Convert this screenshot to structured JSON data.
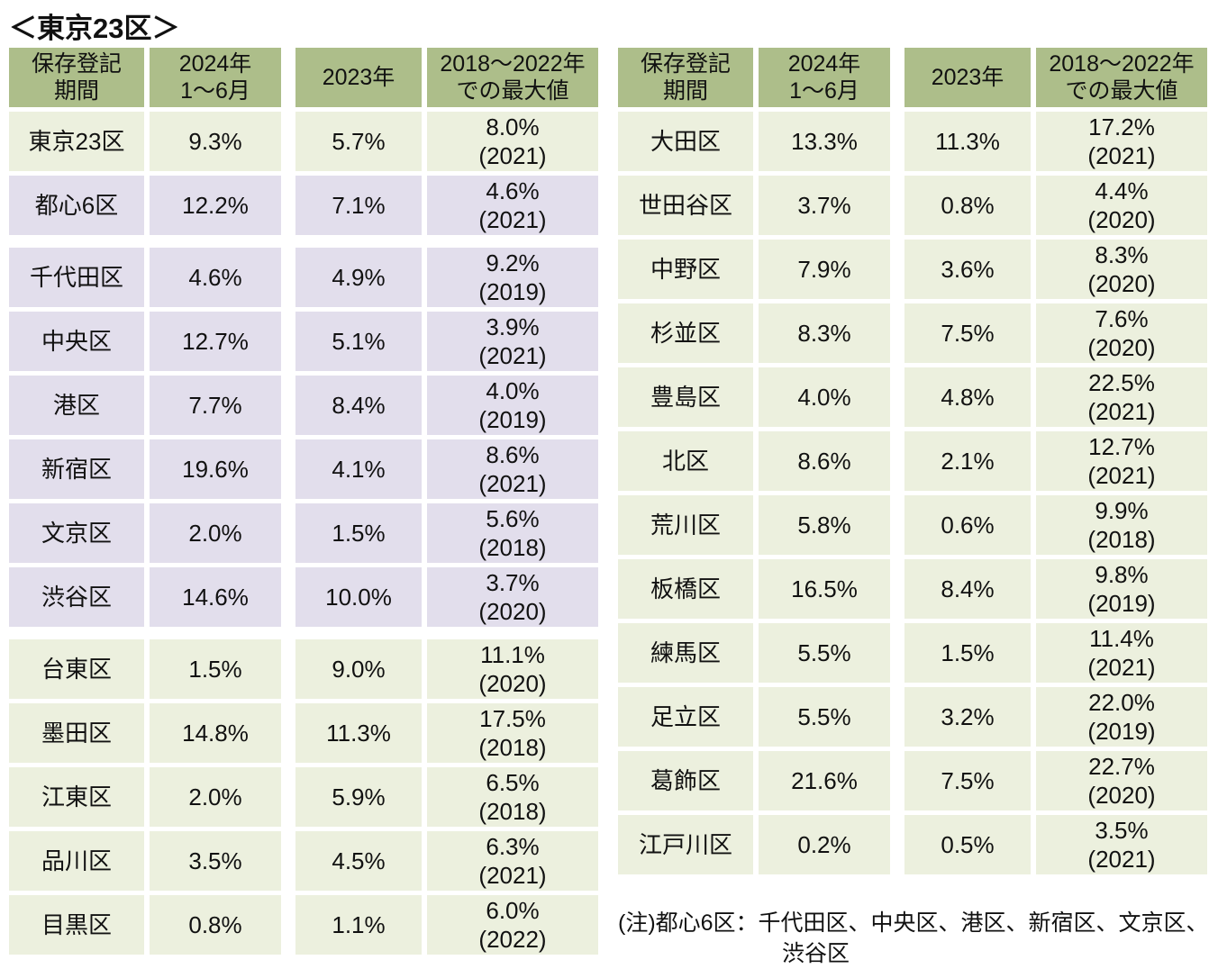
{
  "title": "＜東京23区＞",
  "columns": [
    "保存登記\n期間",
    "2024年\n1～6月",
    "2023年",
    "2018～2022年\nでの最大値"
  ],
  "left_table": {
    "rows": [
      {
        "name": "東京23区",
        "h1_2024": "9.3%",
        "y2023": "5.7%",
        "max_value": "8.0%",
        "max_year": "(2021)",
        "variant": "green",
        "gap_before": false
      },
      {
        "name": "都心6区",
        "h1_2024": "12.2%",
        "y2023": "7.1%",
        "max_value": "4.6%",
        "max_year": "(2021)",
        "variant": "purple",
        "gap_before": false
      },
      {
        "name": "千代田区",
        "h1_2024": "4.6%",
        "y2023": "4.9%",
        "max_value": "9.2%",
        "max_year": "(2019)",
        "variant": "purple",
        "gap_before": true
      },
      {
        "name": "中央区",
        "h1_2024": "12.7%",
        "y2023": "5.1%",
        "max_value": "3.9%",
        "max_year": "(2021)",
        "variant": "purple",
        "gap_before": false
      },
      {
        "name": "港区",
        "h1_2024": "7.7%",
        "y2023": "8.4%",
        "max_value": "4.0%",
        "max_year": "(2019)",
        "variant": "purple",
        "gap_before": false
      },
      {
        "name": "新宿区",
        "h1_2024": "19.6%",
        "y2023": "4.1%",
        "max_value": "8.6%",
        "max_year": "(2021)",
        "variant": "purple",
        "gap_before": false
      },
      {
        "name": "文京区",
        "h1_2024": "2.0%",
        "y2023": "1.5%",
        "max_value": "5.6%",
        "max_year": "(2018)",
        "variant": "purple",
        "gap_before": false
      },
      {
        "name": "渋谷区",
        "h1_2024": "14.6%",
        "y2023": "10.0%",
        "max_value": "3.7%",
        "max_year": "(2020)",
        "variant": "purple",
        "gap_before": false
      },
      {
        "name": "台東区",
        "h1_2024": "1.5%",
        "y2023": "9.0%",
        "max_value": "11.1%",
        "max_year": "(2020)",
        "variant": "green",
        "gap_before": true
      },
      {
        "name": "墨田区",
        "h1_2024": "14.8%",
        "y2023": "11.3%",
        "max_value": "17.5%",
        "max_year": "(2018)",
        "variant": "green",
        "gap_before": false
      },
      {
        "name": "江東区",
        "h1_2024": "2.0%",
        "y2023": "5.9%",
        "max_value": "6.5%",
        "max_year": "(2018)",
        "variant": "green",
        "gap_before": false
      },
      {
        "name": "品川区",
        "h1_2024": "3.5%",
        "y2023": "4.5%",
        "max_value": "6.3%",
        "max_year": "(2021)",
        "variant": "green",
        "gap_before": false
      },
      {
        "name": "目黒区",
        "h1_2024": "0.8%",
        "y2023": "1.1%",
        "max_value": "6.0%",
        "max_year": "(2022)",
        "variant": "green",
        "gap_before": false
      }
    ]
  },
  "right_table": {
    "rows": [
      {
        "name": "大田区",
        "h1_2024": "13.3%",
        "y2023": "11.3%",
        "max_value": "17.2%",
        "max_year": "(2021)",
        "variant": "green",
        "gap_before": false
      },
      {
        "name": "世田谷区",
        "h1_2024": "3.7%",
        "y2023": "0.8%",
        "max_value": "4.4%",
        "max_year": "(2020)",
        "variant": "green",
        "gap_before": false
      },
      {
        "name": "中野区",
        "h1_2024": "7.9%",
        "y2023": "3.6%",
        "max_value": "8.3%",
        "max_year": "(2020)",
        "variant": "green",
        "gap_before": false
      },
      {
        "name": "杉並区",
        "h1_2024": "8.3%",
        "y2023": "7.5%",
        "max_value": "7.6%",
        "max_year": "(2020)",
        "variant": "green",
        "gap_before": false
      },
      {
        "name": "豊島区",
        "h1_2024": "4.0%",
        "y2023": "4.8%",
        "max_value": "22.5%",
        "max_year": "(2021)",
        "variant": "green",
        "gap_before": false
      },
      {
        "name": "北区",
        "h1_2024": "8.6%",
        "y2023": "2.1%",
        "max_value": "12.7%",
        "max_year": "(2021)",
        "variant": "green",
        "gap_before": false
      },
      {
        "name": "荒川区",
        "h1_2024": "5.8%",
        "y2023": "0.6%",
        "max_value": "9.9%",
        "max_year": "(2018)",
        "variant": "green",
        "gap_before": false
      },
      {
        "name": "板橋区",
        "h1_2024": "16.5%",
        "y2023": "8.4%",
        "max_value": "9.8%",
        "max_year": "(2019)",
        "variant": "green",
        "gap_before": false
      },
      {
        "name": "練馬区",
        "h1_2024": "5.5%",
        "y2023": "1.5%",
        "max_value": "11.4%",
        "max_year": "(2021)",
        "variant": "green",
        "gap_before": false
      },
      {
        "name": "足立区",
        "h1_2024": "5.5%",
        "y2023": "3.2%",
        "max_value": "22.0%",
        "max_year": "(2019)",
        "variant": "green",
        "gap_before": false
      },
      {
        "name": "葛飾区",
        "h1_2024": "21.6%",
        "y2023": "7.5%",
        "max_value": "22.7%",
        "max_year": "(2020)",
        "variant": "green",
        "gap_before": false
      },
      {
        "name": "江戸川区",
        "h1_2024": "0.2%",
        "y2023": "0.5%",
        "max_value": "3.5%",
        "max_year": "(2021)",
        "variant": "green",
        "gap_before": false
      }
    ]
  },
  "note": {
    "line1": "(注)都心6区：千代田区、中央区、港区、新宿区、文京区、",
    "line2": "渋谷区"
  },
  "colors": {
    "header_bg": "#ADBE8A",
    "row_green_bg": "#ECF0DE",
    "row_purple_bg": "#E2DEEC",
    "text": "#111111",
    "background": "#FFFFFF"
  }
}
